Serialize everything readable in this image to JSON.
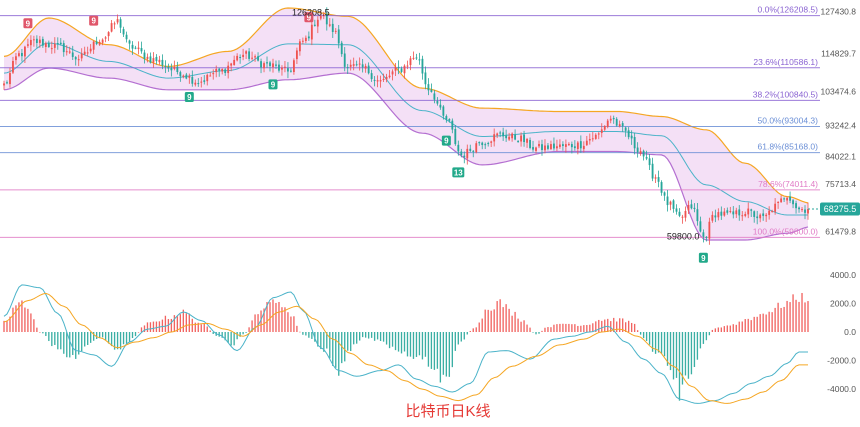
{
  "chart_data": {
    "type": "candlestick-macd",
    "title": "比特币日K线",
    "price_axis": {
      "range": [
        56000,
        128500
      ],
      "ticks": [
        "127430.8",
        "114829.7",
        "103474.6",
        "93242.4",
        "84022.1",
        "75713.4",
        "61479.8"
      ]
    },
    "fibonacci": [
      {
        "label": "0.0%(126208.5)",
        "value": 126208.5,
        "color": "#8a63d2"
      },
      {
        "label": "23.6%(110586.1)",
        "value": 110586.1,
        "color": "#8a63d2"
      },
      {
        "label": "38.2%(100840.5)",
        "value": 100840.5,
        "color": "#8a63d2"
      },
      {
        "label": "50.0%(93004.3)",
        "value": 93004.3,
        "color": "#6b8fd6"
      },
      {
        "label": "61.8%(85168.0)",
        "value": 85168.0,
        "color": "#6b8fd6"
      },
      {
        "label": "78.6%(74011.4)",
        "value": 74011.4,
        "color": "#e07bc6"
      },
      {
        "label": "100.0%(59800.0)",
        "value": 59800.0,
        "color": "#e07bc6"
      }
    ],
    "annotations": {
      "high_label": "126208.5",
      "low_label": "59800.0",
      "current_price": "68275.5",
      "current_value": 68275.5
    },
    "td_markers": [
      {
        "index": 8,
        "text": "9",
        "type": "sell"
      },
      {
        "index": 30,
        "text": "9",
        "type": "sell"
      },
      {
        "index": 62,
        "text": "9",
        "type": "buy"
      },
      {
        "index": 90,
        "text": "9",
        "type": "buy"
      },
      {
        "index": 102,
        "text": "9",
        "type": "sell"
      },
      {
        "index": 148,
        "text": "9",
        "type": "buy"
      },
      {
        "index": 152,
        "text": "13",
        "type": "buy"
      },
      {
        "index": 234,
        "text": "9",
        "type": "buy"
      }
    ],
    "colors": {
      "up": "#ef5350",
      "down": "#26a69a",
      "band_upper": "#f5a623",
      "band_mid": "#4bb3c9",
      "band_fill": "#f0d5f3",
      "dif": "#4bb3c9",
      "dea": "#f5a623"
    },
    "bollinger_anchors": {
      "upper": [
        [
          0,
          114000
        ],
        [
          15,
          125500
        ],
        [
          35,
          117500
        ],
        [
          55,
          111000
        ],
        [
          75,
          115500
        ],
        [
          95,
          128500
        ],
        [
          115,
          126000
        ],
        [
          140,
          104500
        ],
        [
          160,
          98500
        ],
        [
          185,
          97500
        ],
        [
          205,
          97500
        ],
        [
          220,
          96000
        ],
        [
          235,
          92000
        ],
        [
          248,
          82000
        ],
        [
          262,
          72000
        ],
        [
          270,
          70000
        ]
      ],
      "lower": [
        [
          0,
          104000
        ],
        [
          15,
          110500
        ],
        [
          35,
          107500
        ],
        [
          55,
          104000
        ],
        [
          75,
          104000
        ],
        [
          95,
          107000
        ],
        [
          115,
          109000
        ],
        [
          140,
          91000
        ],
        [
          160,
          81500
        ],
        [
          185,
          85500
        ],
        [
          205,
          85500
        ],
        [
          220,
          84500
        ],
        [
          235,
          59000
        ],
        [
          248,
          59000
        ],
        [
          262,
          61000
        ],
        [
          270,
          63000
        ]
      ]
    },
    "macd_axis": {
      "range": [
        -4900,
        4900
      ],
      "ticks": [
        "4000.0",
        "2000.0",
        "0.0",
        "-2000.0",
        "-4000.0"
      ]
    },
    "price_anchors": [
      [
        0,
        105500
      ],
      [
        5,
        114500
      ],
      [
        10,
        118500
      ],
      [
        18,
        117000
      ],
      [
        25,
        113500
      ],
      [
        33,
        119500
      ],
      [
        38,
        124500
      ],
      [
        42,
        117000
      ],
      [
        50,
        113000
      ],
      [
        58,
        109500
      ],
      [
        65,
        106500
      ],
      [
        72,
        109500
      ],
      [
        80,
        114500
      ],
      [
        88,
        111500
      ],
      [
        95,
        109500
      ],
      [
        100,
        118500
      ],
      [
        106,
        126208.5
      ],
      [
        110,
        122000
      ],
      [
        115,
        111000
      ],
      [
        120,
        110500
      ],
      [
        126,
        106500
      ],
      [
        132,
        110000
      ],
      [
        138,
        114000
      ],
      [
        142,
        104500
      ],
      [
        148,
        95000
      ],
      [
        153,
        84500
      ],
      [
        160,
        88500
      ],
      [
        166,
        90500
      ],
      [
        172,
        89500
      ],
      [
        178,
        86500
      ],
      [
        185,
        87000
      ],
      [
        192,
        87500
      ],
      [
        198,
        90000
      ],
      [
        203,
        95500
      ],
      [
        207,
        92000
      ],
      [
        212,
        86500
      ],
      [
        218,
        78000
      ],
      [
        222,
        70000
      ],
      [
        226,
        65500
      ],
      [
        230,
        69000
      ],
      [
        234,
        59800
      ],
      [
        238,
        67000
      ],
      [
        243,
        66500
      ],
      [
        248,
        67500
      ],
      [
        254,
        65500
      ],
      [
        258,
        69000
      ],
      [
        262,
        72500
      ],
      [
        266,
        68275.5
      ]
    ],
    "macd_anchors": {
      "hist": [
        [
          0,
          700
        ],
        [
          5,
          2100
        ],
        [
          9,
          1400
        ],
        [
          12,
          0
        ],
        [
          18,
          -1200
        ],
        [
          24,
          -2000
        ],
        [
          28,
          -800
        ],
        [
          33,
          -400
        ],
        [
          38,
          -1400
        ],
        [
          42,
          -600
        ],
        [
          48,
          600
        ],
        [
          54,
          1000
        ],
        [
          60,
          1400
        ],
        [
          66,
          600
        ],
        [
          72,
          -400
        ],
        [
          76,
          -1000
        ],
        [
          80,
          -200
        ],
        [
          86,
          1700
        ],
        [
          92,
          2300
        ],
        [
          96,
          1200
        ],
        [
          100,
          -200
        ],
        [
          108,
          -1400
        ],
        [
          112,
          -3000
        ],
        [
          116,
          -1200
        ],
        [
          120,
          -400
        ],
        [
          126,
          -600
        ],
        [
          132,
          -1400
        ],
        [
          138,
          -1800
        ],
        [
          142,
          -2200
        ],
        [
          148,
          -3600
        ],
        [
          152,
          -800
        ],
        [
          158,
          400
        ],
        [
          162,
          1800
        ],
        [
          166,
          2100
        ],
        [
          170,
          1400
        ],
        [
          174,
          800
        ],
        [
          178,
          -200
        ],
        [
          182,
          400
        ],
        [
          188,
          600
        ],
        [
          194,
          500
        ],
        [
          200,
          900
        ],
        [
          205,
          900
        ],
        [
          210,
          700
        ],
        [
          214,
          -400
        ],
        [
          218,
          -1400
        ],
        [
          222,
          -2100
        ],
        [
          226,
          -4200
        ],
        [
          230,
          -2600
        ],
        [
          234,
          -800
        ],
        [
          238,
          300
        ],
        [
          243,
          500
        ],
        [
          250,
          1000
        ],
        [
          256,
          1500
        ],
        [
          262,
          2100
        ],
        [
          266,
          2500
        ]
      ],
      "dif": [
        [
          0,
          1100
        ],
        [
          6,
          3300
        ],
        [
          12,
          3100
        ],
        [
          18,
          1300
        ],
        [
          24,
          -1300
        ],
        [
          30,
          -1600
        ],
        [
          36,
          -2400
        ],
        [
          42,
          -700
        ],
        [
          48,
          200
        ],
        [
          54,
          400
        ],
        [
          60,
          1400
        ],
        [
          66,
          800
        ],
        [
          72,
          -200
        ],
        [
          78,
          -1300
        ],
        [
          84,
          300
        ],
        [
          90,
          2400
        ],
        [
          96,
          2800
        ],
        [
          100,
          1500
        ],
        [
          106,
          -1100
        ],
        [
          112,
          -2700
        ],
        [
          118,
          -3100
        ],
        [
          126,
          -2700
        ],
        [
          132,
          -2300
        ],
        [
          138,
          -3300
        ],
        [
          144,
          -3800
        ],
        [
          150,
          -4200
        ],
        [
          156,
          -3600
        ],
        [
          162,
          -1400
        ],
        [
          168,
          -1300
        ],
        [
          176,
          -1900
        ],
        [
          184,
          -500
        ],
        [
          190,
          -300
        ],
        [
          196,
          0
        ],
        [
          202,
          400
        ],
        [
          208,
          -700
        ],
        [
          214,
          -1900
        ],
        [
          220,
          -2900
        ],
        [
          226,
          -4700
        ],
        [
          232,
          -5000
        ],
        [
          238,
          -4800
        ],
        [
          244,
          -4300
        ],
        [
          250,
          -3600
        ],
        [
          256,
          -3100
        ],
        [
          262,
          -2200
        ],
        [
          266,
          -1400
        ]
      ],
      "dea": [
        [
          0,
          700
        ],
        [
          8,
          2200
        ],
        [
          14,
          2700
        ],
        [
          20,
          1800
        ],
        [
          26,
          500
        ],
        [
          32,
          -400
        ],
        [
          38,
          -1100
        ],
        [
          44,
          -700
        ],
        [
          50,
          -400
        ],
        [
          56,
          0
        ],
        [
          62,
          500
        ],
        [
          68,
          600
        ],
        [
          74,
          200
        ],
        [
          80,
          -300
        ],
        [
          86,
          500
        ],
        [
          92,
          1400
        ],
        [
          98,
          1800
        ],
        [
          104,
          900
        ],
        [
          110,
          -500
        ],
        [
          116,
          -1500
        ],
        [
          122,
          -2300
        ],
        [
          128,
          -2700
        ],
        [
          134,
          -3400
        ],
        [
          140,
          -4000
        ],
        [
          146,
          -4500
        ],
        [
          152,
          -4800
        ],
        [
          158,
          -4400
        ],
        [
          164,
          -3200
        ],
        [
          170,
          -2400
        ],
        [
          178,
          -1700
        ],
        [
          186,
          -900
        ],
        [
          194,
          -500
        ],
        [
          200,
          0
        ],
        [
          206,
          200
        ],
        [
          212,
          -300
        ],
        [
          218,
          -1200
        ],
        [
          224,
          -2400
        ],
        [
          230,
          -3800
        ],
        [
          236,
          -4800
        ],
        [
          242,
          -5000
        ],
        [
          248,
          -4700
        ],
        [
          254,
          -4200
        ],
        [
          260,
          -3400
        ],
        [
          266,
          -2300
        ]
      ]
    }
  }
}
